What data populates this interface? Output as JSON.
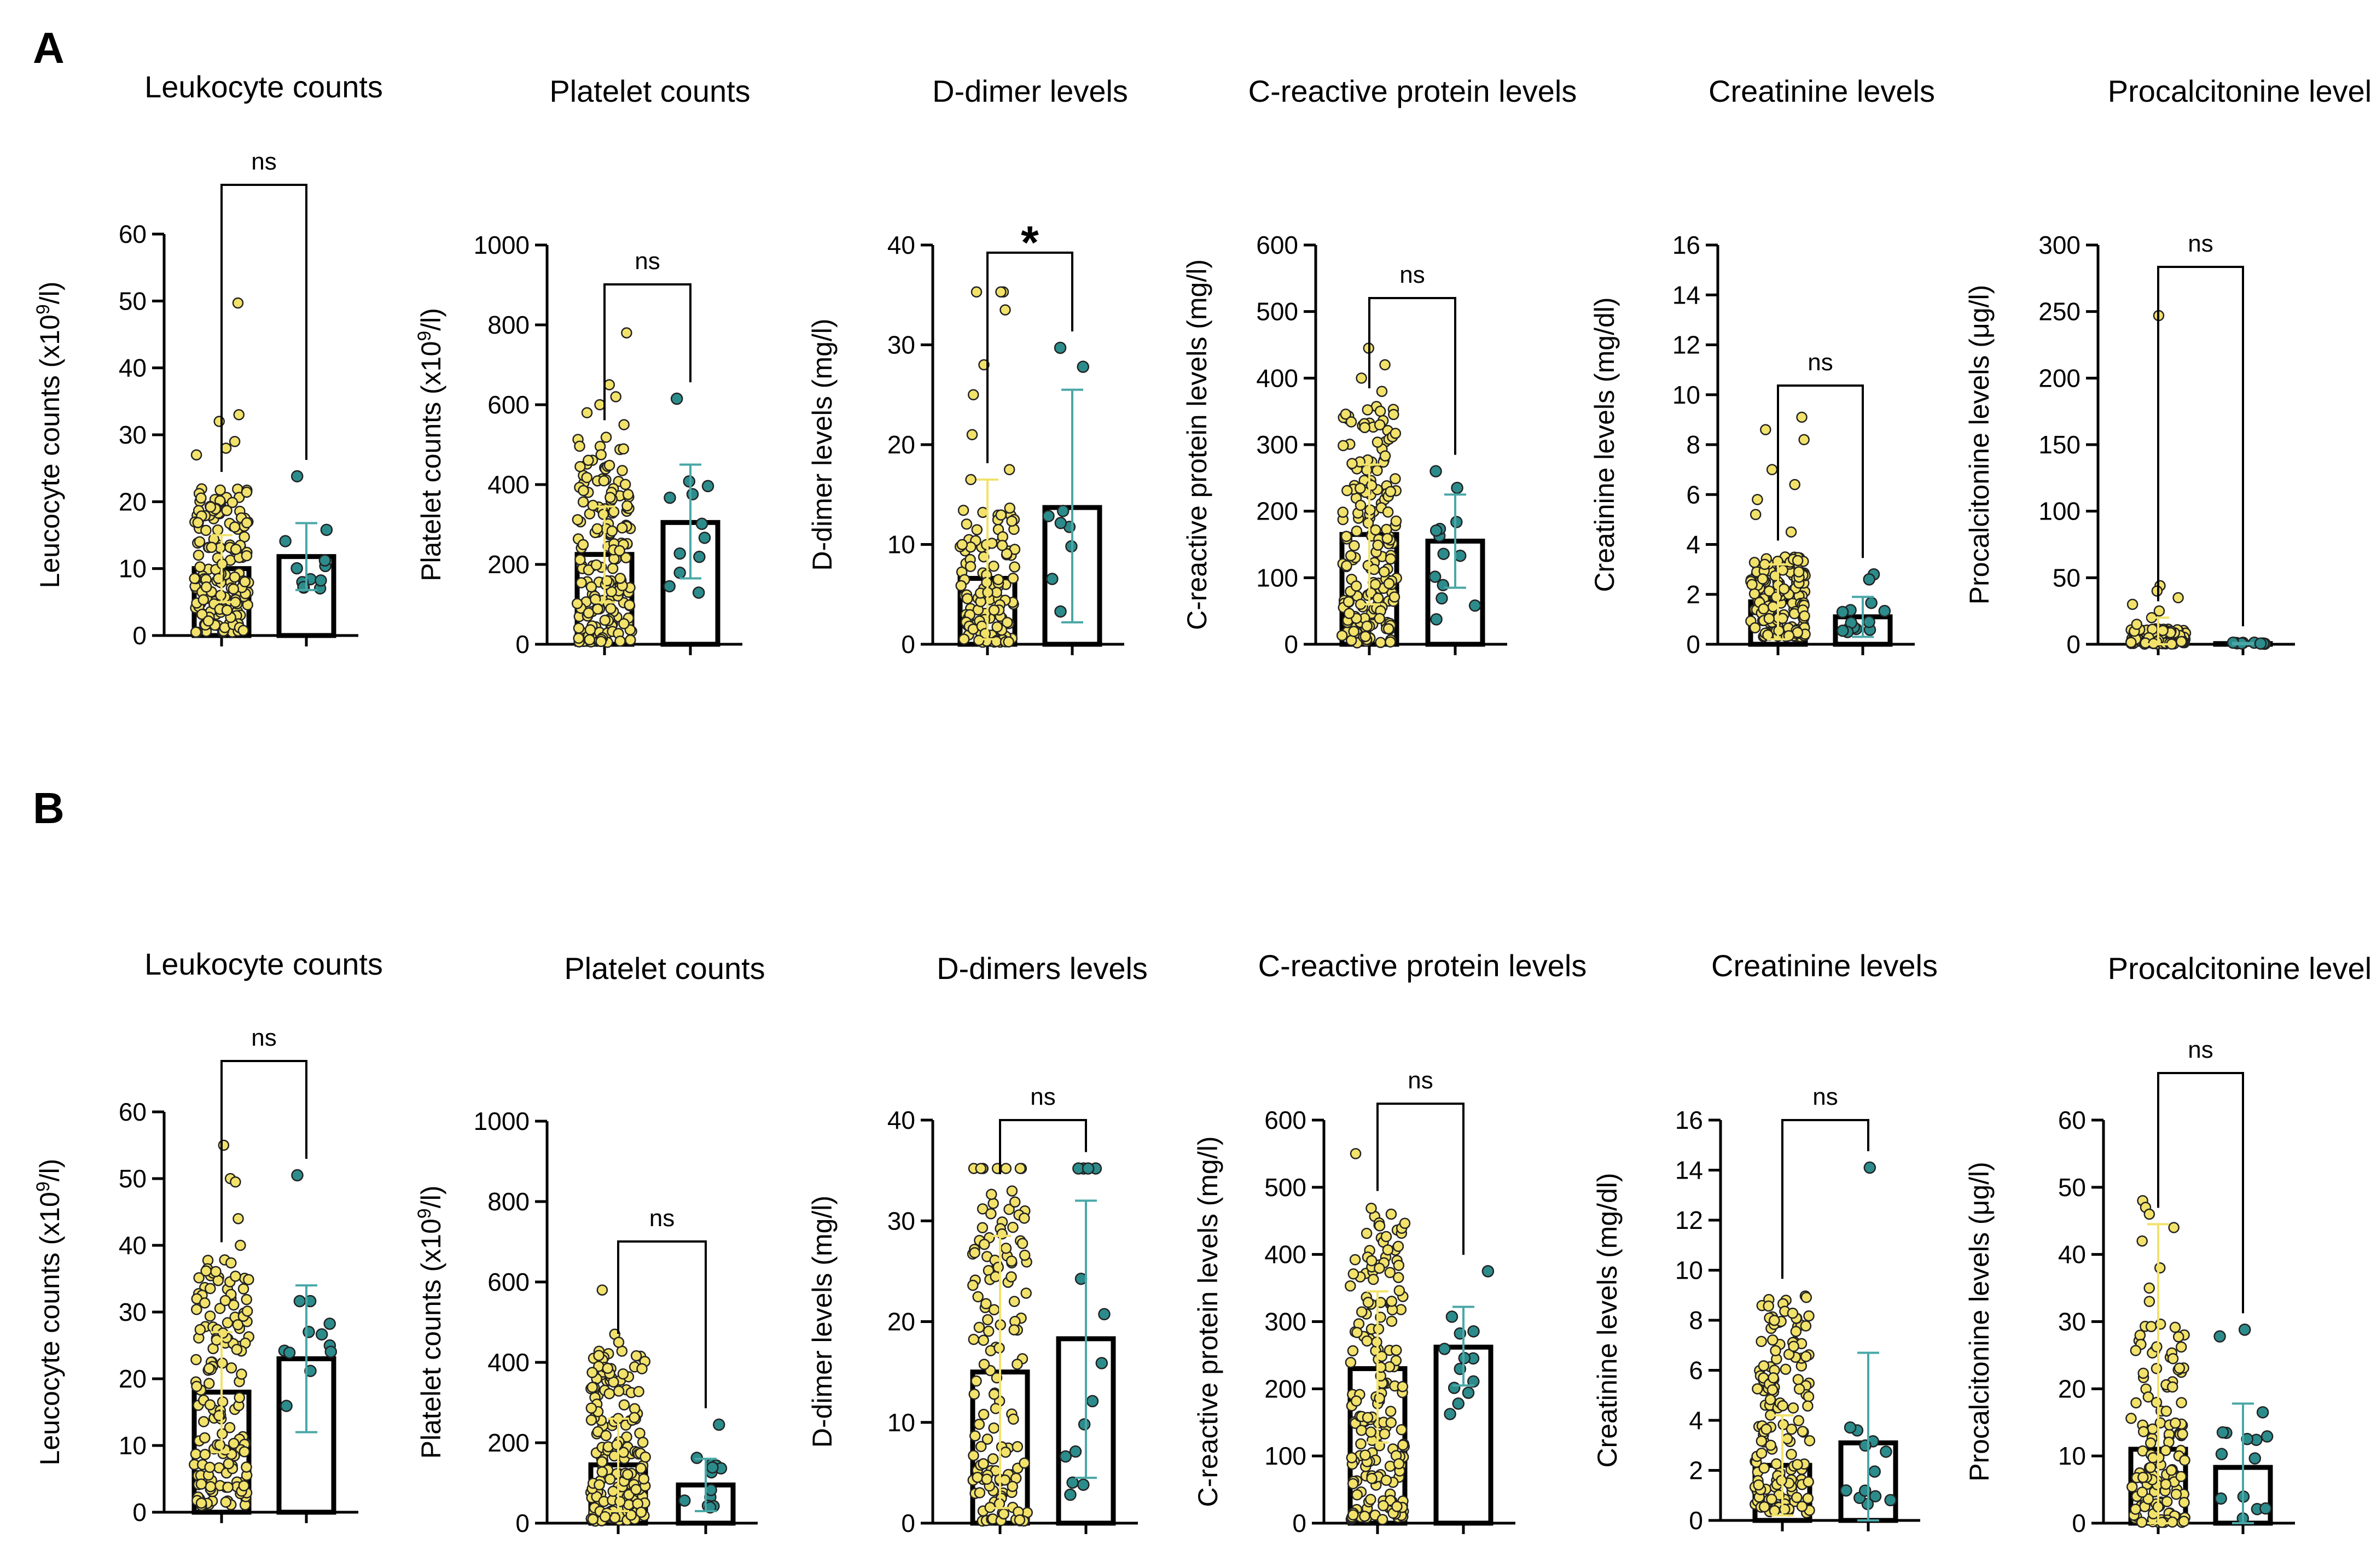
{
  "panel_labels": [
    "A",
    "B"
  ],
  "colors": {
    "group1": "#f2e26a",
    "group2": "#2c8c8c",
    "group2_err": "#4aa7a7",
    "group1_err": "#f2e26a",
    "bar": "#000000"
  },
  "chart_data": [
    {
      "id": "A1",
      "panel": "A",
      "type": "bar",
      "title": "Leukocyte counts",
      "ylabel": "Leucocyte counts (x10",
      "ylabel_sup": "9",
      "ylabel_tail": "/l)",
      "ylim": [
        0,
        60
      ],
      "yticks": [
        "0",
        "10",
        "20",
        "30",
        "40",
        "50",
        "60"
      ],
      "significance": "ns",
      "groups": [
        {
          "bar": 10,
          "sd_low": 5,
          "sd_high": 15,
          "n": 160,
          "min": 0.5,
          "max": 22,
          "outliers": [
            49.7,
            33,
            32,
            29,
            28,
            27
          ]
        },
        {
          "bar": 11.8,
          "sd_low": 6.8,
          "sd_high": 16.8,
          "n": 11,
          "min": 7,
          "max": 16,
          "outliers": [
            23.8
          ]
        }
      ]
    },
    {
      "id": "A2",
      "panel": "A",
      "type": "bar",
      "title": "Platelet counts",
      "ylabel": "Platelet counts (x10",
      "ylabel_sup": "9",
      "ylabel_tail": "/l)",
      "ylim": [
        0,
        1000
      ],
      "yticks": [
        "0",
        "200",
        "400",
        "600",
        "800",
        "1000"
      ],
      "significance": "ns",
      "groups": [
        {
          "bar": 225,
          "sd_low": 105,
          "sd_high": 345,
          "n": 170,
          "min": 5,
          "max": 520,
          "outliers": [
            780,
            650,
            620,
            600,
            580,
            550
          ]
        },
        {
          "bar": 305,
          "sd_low": 165,
          "sd_high": 450,
          "n": 11,
          "min": 100,
          "max": 420,
          "outliers": [
            615
          ]
        }
      ]
    },
    {
      "id": "A3",
      "panel": "A",
      "type": "bar",
      "title": "D-dimer levels",
      "ylabel": "D-dimer levels (mg/l)",
      "ylim": [
        0,
        40
      ],
      "yticks": [
        "0",
        "10",
        "20",
        "30",
        "40"
      ],
      "significance": "*",
      "groups": [
        {
          "bar": 6.6,
          "sd_low": 0.5,
          "sd_high": 16.5,
          "n": 110,
          "min": 0.2,
          "max": 14,
          "outliers": [
            35.3,
            35.3,
            35.3,
            35.3,
            33.5,
            28,
            25,
            21,
            17.5,
            16.5
          ]
        },
        {
          "bar": 13.7,
          "sd_low": 2.2,
          "sd_high": 25.5,
          "n": 7,
          "min": 3,
          "max": 15,
          "outliers": [
            29.7,
            27.8
          ]
        }
      ]
    },
    {
      "id": "A4",
      "panel": "A",
      "type": "bar",
      "title": "C-reactive protein levels",
      "ylabel": "C-reactive protein levels (mg/l)",
      "ylim": [
        0,
        600
      ],
      "yticks": [
        "0",
        "100",
        "200",
        "300",
        "400",
        "500",
        "600"
      ],
      "significance": "ns",
      "groups": [
        {
          "bar": 165,
          "sd_low": 60,
          "sd_high": 270,
          "n": 180,
          "min": 2,
          "max": 360,
          "outliers": [
            445,
            420,
            400,
            380
          ]
        },
        {
          "bar": 155,
          "sd_low": 85,
          "sd_high": 225,
          "n": 11,
          "min": 35,
          "max": 215,
          "outliers": [
            260,
            235
          ]
        }
      ]
    },
    {
      "id": "A5",
      "panel": "A",
      "type": "bar",
      "title": "Creatinine levels",
      "ylabel": "Creatinine levels (mg/dl)",
      "ylim": [
        0,
        16
      ],
      "yticks": [
        "0",
        "2",
        "4",
        "6",
        "8",
        "10",
        "12",
        "14",
        "16"
      ],
      "significance": "ns",
      "groups": [
        {
          "bar": 1.7,
          "sd_low": 0.2,
          "sd_high": 3.2,
          "n": 150,
          "min": 0.3,
          "max": 3.5,
          "outliers": [
            9.1,
            8.6,
            8.2,
            7.0,
            6.4,
            5.8,
            5.2,
            4.5
          ]
        },
        {
          "bar": 1.1,
          "sd_low": 0.3,
          "sd_high": 1.9,
          "n": 12,
          "min": 0.4,
          "max": 2.0,
          "outliers": [
            2.8,
            2.6
          ]
        }
      ]
    },
    {
      "id": "A6",
      "panel": "A",
      "type": "bar",
      "title": "Procalcitonine levels",
      "ylabel": "Procalcitonine levels (μg/l)",
      "ylim": [
        0,
        300
      ],
      "yticks": [
        "0",
        "50",
        "100",
        "150",
        "200",
        "250",
        "300"
      ],
      "significance": "ns",
      "groups": [
        {
          "bar": 3,
          "sd_low": 0,
          "sd_high": 20,
          "n": 120,
          "min": 0.1,
          "max": 12,
          "outliers": [
            247,
            44,
            40,
            35,
            30,
            25,
            20,
            15
          ]
        },
        {
          "bar": 0.5,
          "sd_low": 0,
          "sd_high": 1,
          "n": 10,
          "min": 0.1,
          "max": 1.2,
          "outliers": []
        }
      ]
    },
    {
      "id": "B1",
      "panel": "B",
      "type": "bar",
      "title": "Leukocyte counts",
      "ylabel": "Leucocyte counts (x10",
      "ylabel_sup": "9",
      "ylabel_tail": "/l)",
      "ylim": [
        0,
        60
      ],
      "yticks": [
        "0",
        "10",
        "20",
        "30",
        "40",
        "50",
        "60"
      ],
      "significance": "ns",
      "groups": [
        {
          "bar": 18,
          "sd_low": 9,
          "sd_high": 27,
          "n": 160,
          "min": 1,
          "max": 38,
          "outliers": [
            55,
            50,
            49.5,
            44,
            40
          ]
        },
        {
          "bar": 23,
          "sd_low": 12,
          "sd_high": 34,
          "n": 11,
          "min": 12,
          "max": 33,
          "outliers": [
            50.5
          ]
        }
      ]
    },
    {
      "id": "B2",
      "panel": "B",
      "type": "bar",
      "title": "Platelet counts",
      "ylabel": "Platelet counts (x10",
      "ylabel_sup": "9",
      "ylabel_tail": "/l)",
      "ylim": [
        0,
        1000
      ],
      "yticks": [
        "0",
        "200",
        "400",
        "600",
        "800",
        "1000"
      ],
      "significance": "ns",
      "groups": [
        {
          "bar": 145,
          "sd_low": 30,
          "sd_high": 260,
          "n": 170,
          "min": 5,
          "max": 430,
          "outliers": [
            580,
            470,
            450
          ]
        },
        {
          "bar": 95,
          "sd_low": 30,
          "sd_high": 160,
          "n": 12,
          "min": 20,
          "max": 170,
          "outliers": [
            245
          ]
        }
      ]
    },
    {
      "id": "B3",
      "panel": "B",
      "type": "bar",
      "title": "D-dimers levels",
      "ylabel": "D-dimer levels (mg/l)",
      "ylim": [
        0,
        40
      ],
      "yticks": [
        "0",
        "10",
        "20",
        "30",
        "40"
      ],
      "significance": "ns",
      "groups": [
        {
          "bar": 15,
          "sd_low": 1.5,
          "sd_high": 28.5,
          "n": 130,
          "min": 0.2,
          "max": 33,
          "outliers": [
            35.2,
            35.2,
            35.2,
            35.2,
            35.2,
            35.2,
            35.2,
            35.2
          ]
        },
        {
          "bar": 18.3,
          "sd_low": 4.5,
          "sd_high": 32,
          "n": 10,
          "min": 2,
          "max": 25,
          "outliers": [
            35.2,
            35.2,
            35.2,
            35.2
          ]
        }
      ]
    },
    {
      "id": "B4",
      "panel": "B",
      "type": "bar",
      "title": "C-reactive protein levels",
      "ylabel": "C-reactive protein levels (mg/l)",
      "ylim": [
        0,
        600
      ],
      "yticks": [
        "0",
        "100",
        "200",
        "300",
        "400",
        "500",
        "600"
      ],
      "significance": "ns",
      "groups": [
        {
          "bar": 230,
          "sd_low": 120,
          "sd_high": 345,
          "n": 180,
          "min": 5,
          "max": 470,
          "outliers": [
            550,
            460
          ]
        },
        {
          "bar": 262,
          "sd_low": 205,
          "sd_high": 322,
          "n": 12,
          "min": 160,
          "max": 310,
          "outliers": [
            375
          ]
        }
      ]
    },
    {
      "id": "B5",
      "panel": "B",
      "type": "bar",
      "title": "Creatinine levels",
      "ylabel": "Creatinine levels (mg/dl)",
      "ylim": [
        0,
        16
      ],
      "yticks": [
        "0",
        "2",
        "4",
        "6",
        "8",
        "10",
        "12",
        "14",
        "16"
      ],
      "significance": "ns",
      "groups": [
        {
          "bar": 2.2,
          "sd_low": 0.2,
          "sd_high": 4.2,
          "n": 150,
          "min": 0.3,
          "max": 9.0,
          "outliers": []
        },
        {
          "bar": 3.1,
          "sd_low": 0,
          "sd_high": 6.7,
          "n": 12,
          "min": 0.4,
          "max": 3.8,
          "outliers": [
            14.1
          ]
        }
      ]
    },
    {
      "id": "B6",
      "panel": "B",
      "type": "bar",
      "title": "Procalcitonine levels",
      "ylabel": "Procalcitonine levels (μg/l)",
      "ylim": [
        0,
        60
      ],
      "yticks": [
        "0",
        "10",
        "20",
        "30",
        "40",
        "50",
        "60"
      ],
      "significance": "ns",
      "groups": [
        {
          "bar": 11,
          "sd_low": 0,
          "sd_high": 44.5,
          "n": 130,
          "min": 0.1,
          "max": 30,
          "outliers": [
            48,
            47,
            46,
            44,
            42,
            38,
            35,
            33
          ]
        },
        {
          "bar": 8.3,
          "sd_low": 0,
          "sd_high": 17.8,
          "n": 12,
          "min": 0.2,
          "max": 14,
          "outliers": [
            28.8,
            27.8,
            16.5
          ]
        }
      ]
    }
  ]
}
